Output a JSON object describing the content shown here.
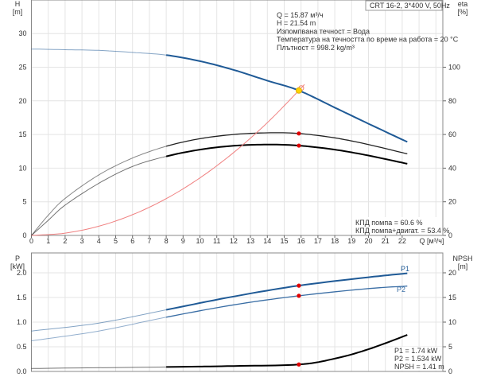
{
  "chart_data": [
    {
      "type": "line",
      "panel": "head-efficiency",
      "title": "CRT 16-2, 3*400 V, 50Hz",
      "xlabel": "Q [м³/ч]",
      "ylabel_left": [
        "H",
        "[m]"
      ],
      "ylabel_right": [
        "eta",
        "[%]"
      ],
      "xlim": [
        0,
        24.4
      ],
      "ylim_left": [
        0,
        35
      ],
      "ylim_right": [
        0,
        140
      ],
      "x_ticks": [
        0,
        1,
        2,
        3,
        4,
        5,
        6,
        7,
        8,
        9,
        10,
        11,
        12,
        13,
        14,
        15,
        16,
        17,
        18,
        19,
        20,
        21,
        22
      ],
      "y_ticks_left": [
        0,
        5,
        10,
        15,
        20,
        25,
        30
      ],
      "y_ticks_right": [
        0,
        20,
        40,
        60,
        80,
        100
      ],
      "grid": true,
      "bold_from_q": 8,
      "series": [
        {
          "key": "H",
          "axis": "left",
          "color": "#1f5a96",
          "points": [
            [
              0,
              27.7
            ],
            [
              2,
              27.6
            ],
            [
              4,
              27.5
            ],
            [
              6,
              27.2
            ],
            [
              8,
              26.8
            ],
            [
              10,
              25.9
            ],
            [
              12,
              24.6
            ],
            [
              14,
              23.0
            ],
            [
              15.87,
              21.54
            ],
            [
              18,
              19.0
            ],
            [
              20,
              16.6
            ],
            [
              22.3,
              13.9
            ]
          ]
        },
        {
          "key": "eta_pump",
          "axis": "right",
          "color": "#222222",
          "points": [
            [
              0,
              0
            ],
            [
              1,
              12
            ],
            [
              2,
              22
            ],
            [
              4,
              36
            ],
            [
              6,
              46
            ],
            [
              8,
              53
            ],
            [
              10,
              57.5
            ],
            [
              12,
              60
            ],
            [
              14,
              61
            ],
            [
              15.87,
              60.6
            ],
            [
              18,
              58
            ],
            [
              20,
              54
            ],
            [
              22.3,
              48.5
            ]
          ]
        },
        {
          "key": "eta_total",
          "axis": "right",
          "color": "#000000",
          "points": [
            [
              0,
              0
            ],
            [
              1,
              9
            ],
            [
              2,
              18
            ],
            [
              4,
              31
            ],
            [
              6,
              41
            ],
            [
              8,
              47
            ],
            [
              10,
              51
            ],
            [
              12,
              53.3
            ],
            [
              14,
              54
            ],
            [
              15.87,
              53.4
            ],
            [
              18,
              51
            ],
            [
              20,
              47.5
            ],
            [
              22.3,
              42.6
            ]
          ]
        },
        {
          "key": "system",
          "axis": "left",
          "color": "#f08080",
          "points": [
            [
              0,
              0
            ],
            [
              2,
              0.34
            ],
            [
              4,
              1.37
            ],
            [
              6,
              3.08
            ],
            [
              8,
              5.47
            ],
            [
              10,
              8.55
            ],
            [
              12,
              12.32
            ],
            [
              14,
              16.76
            ],
            [
              15.87,
              21.54
            ],
            [
              16.2,
              22.44
            ]
          ]
        }
      ],
      "operating_point": {
        "q": 15.87,
        "h": 21.54,
        "eta_pump": 60.6,
        "eta_total": 53.4
      },
      "info_lines": [
        "Q = 15.87 м³/ч",
        "H = 21.54 m",
        "Изпомпвана течност = Вода",
        "Температура на течността по време на работа = 20 °C",
        "Плътност = 998.2 kg/m³"
      ],
      "eta_lines": [
        "КПД помпа = 60.6 %",
        "КПД помпа+двигат. = 53.4 %"
      ]
    },
    {
      "type": "line",
      "panel": "power-npsh",
      "ylabel_left": [
        "P",
        "[kW]"
      ],
      "ylabel_right": [
        "NPSH",
        "[m]"
      ],
      "xlim": [
        0,
        24.4
      ],
      "ylim_left": [
        0,
        2.4
      ],
      "ylim_right": [
        0,
        24
      ],
      "y_ticks_left": [
        "0.0",
        "0.5",
        "1.0",
        "1.5",
        "2.0"
      ],
      "y_ticks_right": [
        0,
        5,
        10,
        15,
        20
      ],
      "grid": true,
      "series": [
        {
          "key": "P1",
          "name": "P1",
          "axis": "left",
          "color": "#1f5a96",
          "points": [
            [
              0,
              0.82
            ],
            [
              4,
              0.98
            ],
            [
              8,
              1.25
            ],
            [
              12,
              1.52
            ],
            [
              15.87,
              1.74
            ],
            [
              20,
              1.91
            ],
            [
              22.3,
              1.99
            ]
          ]
        },
        {
          "key": "P2",
          "name": "P2",
          "axis": "left",
          "color": "#3a6ea5",
          "points": [
            [
              0,
              0.62
            ],
            [
              4,
              0.82
            ],
            [
              8,
              1.1
            ],
            [
              12,
              1.35
            ],
            [
              15.87,
              1.534
            ],
            [
              20,
              1.68
            ],
            [
              22.3,
              1.73
            ]
          ]
        },
        {
          "key": "NPSH",
          "axis": "right",
          "color": "#000000",
          "points": [
            [
              0,
              0.6
            ],
            [
              8,
              0.9
            ],
            [
              12,
              1.1
            ],
            [
              15.87,
              1.41
            ],
            [
              18,
              2.6
            ],
            [
              20,
              4.5
            ],
            [
              22.3,
              7.4
            ]
          ]
        }
      ],
      "operating_point": {
        "q": 15.87,
        "p1": 1.74,
        "p2": 1.534,
        "npsh": 1.41
      },
      "info_lines": [
        "P1 = 1.74 kW",
        "P2 = 1.534 kW",
        "NPSH = 1.41 m"
      ]
    }
  ]
}
